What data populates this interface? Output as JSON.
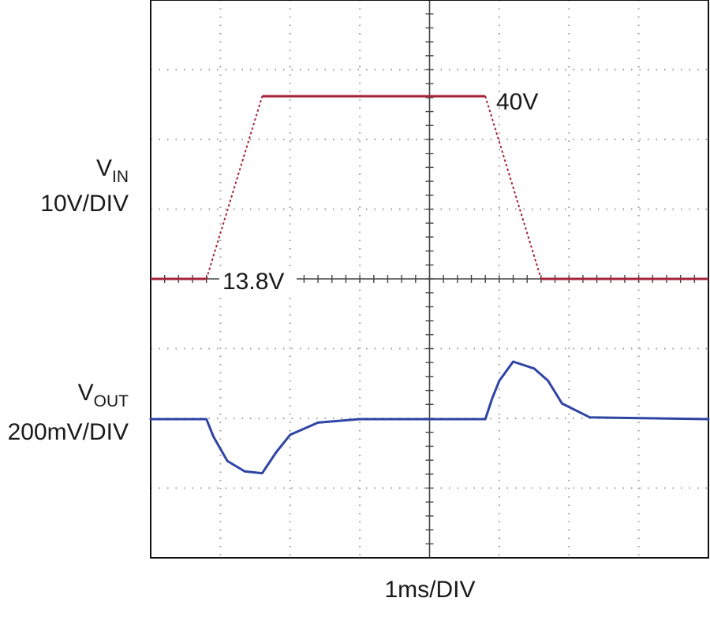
{
  "chart_data": {
    "type": "line",
    "title": "",
    "grid": true,
    "x_axis": {
      "label": "1ms/DIV",
      "units": "ms",
      "divisions": 8,
      "range": [
        0,
        8
      ]
    },
    "y_axis": {
      "divisions": 8
    },
    "series": [
      {
        "name": "V_IN",
        "label_main": "V",
        "label_sub": "IN",
        "scale": "10V/DIV",
        "color": "#a5243a",
        "x": [
          0,
          0.8,
          1.6,
          4.8,
          5.6,
          8
        ],
        "y_volts": [
          13.8,
          13.8,
          40,
          40,
          13.8,
          13.8
        ],
        "annotations": [
          {
            "text": "40V",
            "x": 4.8,
            "y_volts": 40
          },
          {
            "text": "13.8V",
            "x": 0.8,
            "y_volts": 13.8
          }
        ]
      },
      {
        "name": "V_OUT",
        "label_main": "V",
        "label_sub": "OUT",
        "scale": "200mV/DIV",
        "color": "#2f44a4",
        "x": [
          0,
          0.8,
          0.9,
          1.1,
          1.35,
          1.6,
          1.8,
          2.0,
          2.4,
          3.0,
          4.8,
          4.9,
          5.0,
          5.2,
          5.5,
          5.7,
          5.9,
          6.3,
          8
        ],
        "y_mV": [
          0,
          0,
          -50,
          -120,
          -150,
          -155,
          -95,
          -45,
          -10,
          0,
          0,
          60,
          110,
          165,
          145,
          110,
          45,
          5,
          0
        ]
      }
    ]
  }
}
